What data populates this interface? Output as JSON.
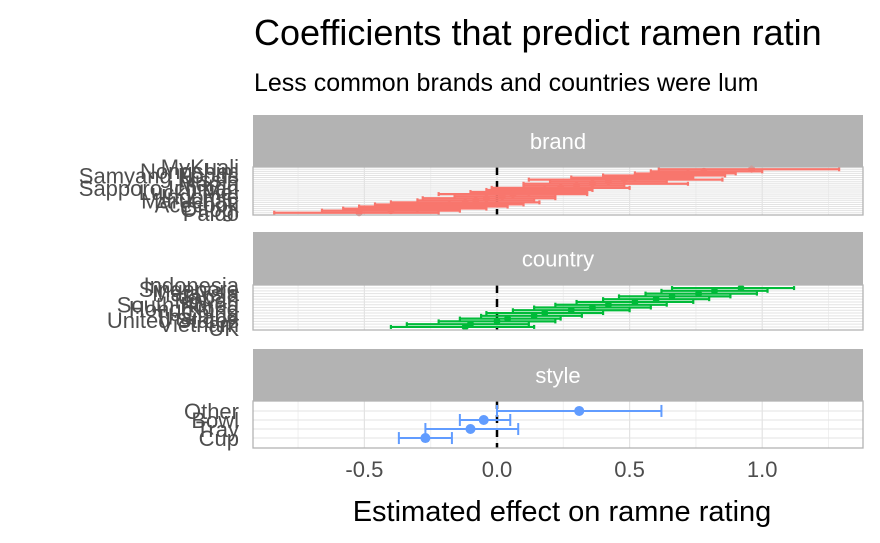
{
  "chart_data": {
    "type": "scatter",
    "title": "Coefficients that predict ramen ratin",
    "subtitle": "Less common brands and countries were lum",
    "xlabel": "Estimated effect on ramne rating",
    "ylabel": "",
    "xlim": [
      -0.92,
      1.38
    ],
    "x_ticks": [
      -0.5,
      0.0,
      0.5,
      1.0
    ],
    "x_tick_labels": [
      "-0.5",
      "0.0",
      "0.5",
      "1.0"
    ],
    "grid": true,
    "reference_line": 0,
    "facets": [
      {
        "name": "brand",
        "color": "#F8766D",
        "visible_labels": [
          "MyKuali",
          "Nongshim",
          "Samyang Foods",
          "Nissin",
          "Mama",
          "Sapporo Ichiban",
          "Lucky Me!",
          "Indomie",
          "Maruchan",
          "Acecook",
          "Ottogi",
          "Paldo"
        ],
        "estimates": [
          {
            "est": 0.96,
            "low": 0.61,
            "high": 1.29
          },
          {
            "est": 0.78,
            "low": 0.58,
            "high": 1.0
          },
          {
            "est": 0.72,
            "low": 0.52,
            "high": 0.9
          },
          {
            "est": 0.62,
            "low": 0.4,
            "high": 0.86
          },
          {
            "est": 0.52,
            "low": 0.28,
            "high": 0.74
          },
          {
            "est": 0.48,
            "low": 0.12,
            "high": 0.85
          },
          {
            "est": 0.42,
            "low": 0.2,
            "high": 0.64
          },
          {
            "est": 0.36,
            "low": 0.1,
            "high": 0.72
          },
          {
            "est": 0.3,
            "low": 0.1,
            "high": 0.48
          },
          {
            "est": 0.24,
            "low": -0.02,
            "high": 0.5
          },
          {
            "est": 0.18,
            "low": -0.04,
            "high": 0.36
          },
          {
            "est": 0.12,
            "low": -0.1,
            "high": 0.34
          },
          {
            "est": 0.06,
            "low": -0.22,
            "high": 0.34
          },
          {
            "est": 0.02,
            "low": -0.16,
            "high": 0.22
          },
          {
            "est": -0.04,
            "low": -0.28,
            "high": 0.22
          },
          {
            "est": -0.08,
            "low": -0.3,
            "high": 0.14
          },
          {
            "est": -0.12,
            "low": -0.4,
            "high": 0.16
          },
          {
            "est": -0.18,
            "low": -0.46,
            "high": 0.1
          },
          {
            "est": -0.22,
            "low": -0.52,
            "high": 0.04
          },
          {
            "est": -0.3,
            "low": -0.58,
            "high": -0.04
          },
          {
            "est": -0.4,
            "low": -0.66,
            "high": -0.14
          },
          {
            "est": -0.52,
            "low": -0.84,
            "high": -0.22
          }
        ]
      },
      {
        "name": "country",
        "color": "#00BA38",
        "visible_labels": [
          "Indonesia",
          "Singapore",
          "Malaysia",
          "Japan",
          "Taiwan",
          "South Korea",
          "Hong Kong",
          "China",
          "Thailand",
          "United States",
          "Vietnam",
          "UK"
        ],
        "estimates": [
          {
            "est": 0.92,
            "low": 0.66,
            "high": 1.12
          },
          {
            "est": 0.82,
            "low": 0.62,
            "high": 1.02
          },
          {
            "est": 0.76,
            "low": 0.56,
            "high": 0.98
          },
          {
            "est": 0.66,
            "low": 0.46,
            "high": 0.88
          },
          {
            "est": 0.6,
            "low": 0.4,
            "high": 0.8
          },
          {
            "est": 0.52,
            "low": 0.3,
            "high": 0.74
          },
          {
            "est": 0.42,
            "low": 0.22,
            "high": 0.64
          },
          {
            "est": 0.36,
            "low": 0.14,
            "high": 0.58
          },
          {
            "est": 0.28,
            "low": 0.06,
            "high": 0.5
          },
          {
            "est": 0.18,
            "low": -0.04,
            "high": 0.4
          },
          {
            "est": 0.14,
            "low": -0.06,
            "high": 0.32
          },
          {
            "est": 0.04,
            "low": -0.14,
            "high": 0.24
          },
          {
            "est": 0.0,
            "low": -0.22,
            "high": 0.22
          },
          {
            "est": -0.1,
            "low": -0.34,
            "high": 0.12
          },
          {
            "est": -0.12,
            "low": -0.4,
            "high": 0.14
          }
        ]
      },
      {
        "name": "style",
        "color": "#619CFF",
        "visible_labels": [
          "Other",
          "Bowl",
          "Tray",
          "Cup"
        ],
        "estimates": [
          {
            "label": "Other",
            "est": 0.31,
            "low": 0.0,
            "high": 0.62
          },
          {
            "label": "Bowl",
            "est": -0.05,
            "low": -0.14,
            "high": 0.05
          },
          {
            "label": "Tray",
            "est": -0.1,
            "low": -0.27,
            "high": 0.08
          },
          {
            "label": "Cup",
            "est": -0.27,
            "low": -0.37,
            "high": -0.17
          }
        ]
      }
    ]
  }
}
